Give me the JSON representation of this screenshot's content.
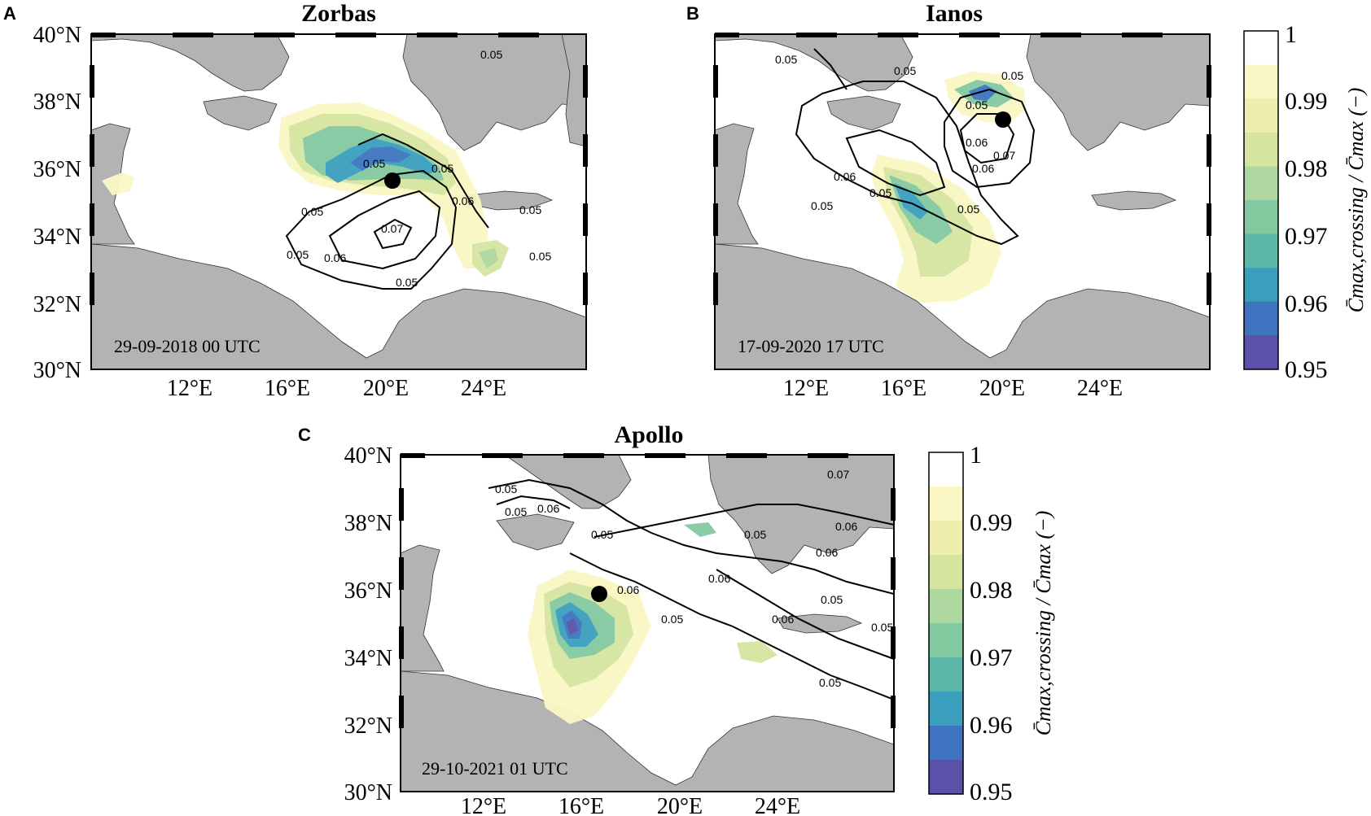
{
  "panel_a": {
    "letter": "A",
    "title": "Zorbas",
    "timestamp": "29-09-2018 00 UTC",
    "lat_labels": [
      "40°N",
      "38°N",
      "36°N",
      "34°N",
      "32°N",
      "30°N"
    ],
    "lon_labels": [
      "12°E",
      "16°E",
      "20°E",
      "24°E"
    ],
    "contour_labels": [
      "0.05",
      "0.05",
      "0.05",
      "0.05",
      "0.05",
      "0.05",
      "0.05",
      "0.06",
      "0.06",
      "0.07",
      "0.05"
    ]
  },
  "panel_b": {
    "letter": "B",
    "title": "Ianos",
    "timestamp": "17-09-2020 17 UTC",
    "lat_labels": [],
    "lon_labels": [
      "12°E",
      "16°E",
      "20°E",
      "24°E"
    ],
    "contour_labels": [
      "0.05",
      "0.05",
      "0.06",
      "0.05",
      "0.05",
      "0.06",
      "0.07",
      "0.05",
      "0.06",
      "0.05",
      "0.05"
    ]
  },
  "panel_c": {
    "letter": "C",
    "title": "Apollo",
    "timestamp": "29-10-2021 01 UTC",
    "lat_labels": [
      "40°N",
      "38°N",
      "36°N",
      "34°N",
      "32°N",
      "30°N"
    ],
    "lon_labels": [
      "12°E",
      "16°E",
      "20°E",
      "24°E"
    ],
    "contour_labels": [
      "0.05",
      "0.05",
      "0.06",
      "0.05",
      "0.06",
      "0.06",
      "0.05",
      "0.05",
      "0.06",
      "0.06",
      "0.06",
      "0.05",
      "0.07",
      "0.05",
      "0.05"
    ]
  },
  "colorbar": {
    "ticks": [
      "1",
      "0.99",
      "0.98",
      "0.97",
      "0.96",
      "0.95"
    ],
    "label": "C̄max,crossing / C̄max (−)",
    "colors": [
      "#ffffff",
      "#faf7c5",
      "#f0eeae",
      "#d5e5a0",
      "#aed8a0",
      "#83c9a0",
      "#5bb8a6",
      "#3a9fbd",
      "#3e74bf",
      "#5a52a8"
    ]
  },
  "colors": {
    "land": "#b3b3b3",
    "sea": "#ffffff",
    "contour": "#000000"
  }
}
